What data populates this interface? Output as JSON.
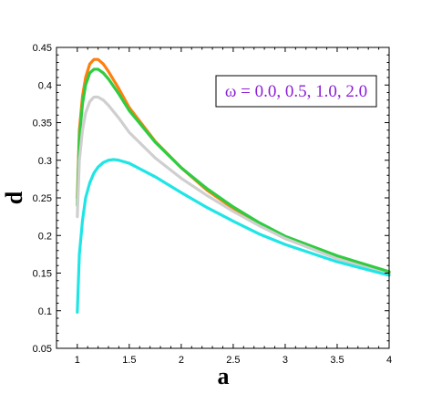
{
  "chart_data": {
    "type": "line",
    "title": "",
    "xlabel": "a",
    "ylabel": "d",
    "xlim": [
      0.8,
      4
    ],
    "ylim": [
      0.05,
      0.45
    ],
    "xticks": [
      1,
      1.5,
      2,
      2.5,
      3,
      3.5,
      4
    ],
    "xtick_labels": [
      "1",
      "1.5",
      "2",
      "2.5",
      "3",
      "3.5",
      "4"
    ],
    "yticks": [
      0.05,
      0.1,
      0.15,
      0.2,
      0.25,
      0.3,
      0.35,
      0.4,
      0.45
    ],
    "ytick_labels": [
      "0.05",
      "0.1",
      "0.15",
      "0.2",
      "0.25",
      "0.3",
      "0.35",
      "0.4",
      "0.45"
    ],
    "grid": false,
    "legend_text": "ω = 0.0, 0.5, 1.0, 2.0",
    "legend_color": "#8b1fd6",
    "legend_position": "top-right",
    "series": [
      {
        "color": "#ff7f0e",
        "x": [
          1.0,
          1.02,
          1.05,
          1.08,
          1.12,
          1.16,
          1.2,
          1.25,
          1.3,
          1.4,
          1.5,
          1.75,
          2.0,
          2.25,
          2.5,
          2.75,
          3.0,
          3.5,
          4.0
        ],
        "y": [
          0.25,
          0.34,
          0.385,
          0.41,
          0.428,
          0.434,
          0.434,
          0.428,
          0.418,
          0.395,
          0.37,
          0.325,
          0.29,
          0.26,
          0.236,
          0.214,
          0.196,
          0.17,
          0.15
        ]
      },
      {
        "color": "#2ecc40",
        "x": [
          1.0,
          1.02,
          1.05,
          1.08,
          1.12,
          1.16,
          1.2,
          1.25,
          1.3,
          1.4,
          1.5,
          1.75,
          2.0,
          2.25,
          2.5,
          2.75,
          3.0,
          3.5,
          4.0
        ],
        "y": [
          0.24,
          0.33,
          0.375,
          0.4,
          0.416,
          0.421,
          0.421,
          0.416,
          0.408,
          0.388,
          0.366,
          0.324,
          0.29,
          0.262,
          0.238,
          0.217,
          0.199,
          0.173,
          0.152
        ]
      },
      {
        "color": "#cfcfcf",
        "x": [
          1.0,
          1.02,
          1.05,
          1.08,
          1.12,
          1.16,
          1.2,
          1.25,
          1.3,
          1.4,
          1.5,
          1.75,
          2.0,
          2.25,
          2.5,
          2.75,
          3.0,
          3.5,
          4.0
        ],
        "y": [
          0.225,
          0.3,
          0.34,
          0.363,
          0.378,
          0.384,
          0.384,
          0.38,
          0.373,
          0.356,
          0.337,
          0.303,
          0.276,
          0.253,
          0.232,
          0.213,
          0.196,
          0.169,
          0.148
        ]
      },
      {
        "color": "#1fe5e5",
        "x": [
          1.0,
          1.02,
          1.05,
          1.08,
          1.12,
          1.16,
          1.2,
          1.25,
          1.3,
          1.35,
          1.4,
          1.5,
          1.75,
          2.0,
          2.25,
          2.5,
          2.75,
          3.0,
          3.5,
          4.0
        ],
        "y": [
          0.098,
          0.175,
          0.22,
          0.25,
          0.27,
          0.283,
          0.291,
          0.297,
          0.3,
          0.301,
          0.3,
          0.296,
          0.278,
          0.257,
          0.237,
          0.219,
          0.202,
          0.188,
          0.165,
          0.147
        ]
      }
    ]
  }
}
